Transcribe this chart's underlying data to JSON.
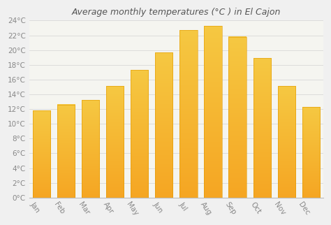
{
  "title": "Average monthly temperatures (°C ) in El Cajon",
  "months": [
    "Jan",
    "Feb",
    "Mar",
    "Apr",
    "May",
    "Jun",
    "Jul",
    "Aug",
    "Sep",
    "Oct",
    "Nov",
    "Dec"
  ],
  "values": [
    11.8,
    12.6,
    13.2,
    15.1,
    17.3,
    19.7,
    22.7,
    23.3,
    21.8,
    18.9,
    15.1,
    12.3
  ],
  "bar_color_top": "#F5A623",
  "bar_color_bottom": "#F5C842",
  "bar_edge_color": "#E09900",
  "background_color": "#f0f0f0",
  "plot_bg_color": "#f5f5f0",
  "grid_color": "#d8d8d8",
  "ylim": [
    0,
    24
  ],
  "yticks": [
    0,
    2,
    4,
    6,
    8,
    10,
    12,
    14,
    16,
    18,
    20,
    22,
    24
  ],
  "title_fontsize": 9,
  "tick_fontsize": 7.5,
  "title_color": "#555555",
  "tick_color": "#888888",
  "xlabel_rotation": -55
}
